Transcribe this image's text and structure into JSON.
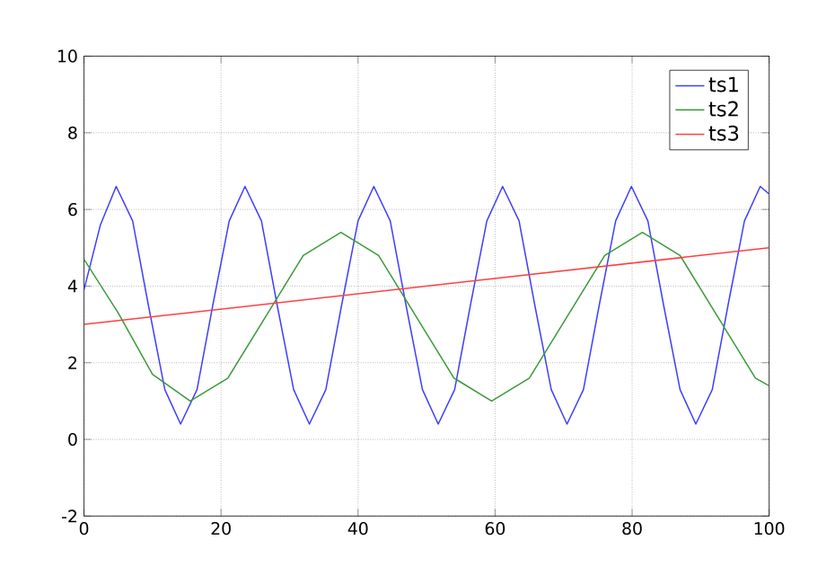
{
  "chart_data": {
    "type": "line",
    "xlim": [
      0,
      100
    ],
    "ylim": [
      -2,
      10
    ],
    "xticks": [
      0,
      20,
      40,
      60,
      80,
      100
    ],
    "yticks": [
      -2,
      0,
      2,
      4,
      6,
      8,
      10
    ],
    "grid": true,
    "legend": "top right",
    "marker": "none",
    "line_style": "solid",
    "series": [
      {
        "name": "ts1",
        "color": "#3f3fff",
        "x": [
          0,
          2.4,
          4.7,
          7.1,
          9.4,
          11.8,
          14.1,
          16.5,
          18.8,
          21.2,
          23.5,
          25.9,
          28.2,
          30.6,
          32.9,
          35.3,
          37.6,
          40,
          42.3,
          44.7,
          47,
          49.4,
          51.7,
          54.1,
          56.4,
          58.8,
          61.1,
          63.5,
          65.8,
          68.2,
          70.5,
          72.9,
          75.2,
          77.6,
          79.9,
          82.3,
          84.6,
          87,
          89.3,
          91.7,
          94,
          96.4,
          98.7,
          100
        ],
        "values": [
          3.9,
          5.6,
          6.6,
          5.7,
          3.5,
          1.3,
          0.4,
          1.3,
          3.5,
          5.7,
          6.6,
          5.7,
          3.5,
          1.3,
          0.4,
          1.3,
          3.5,
          5.7,
          6.6,
          5.7,
          3.5,
          1.3,
          0.4,
          1.3,
          3.5,
          5.7,
          6.6,
          5.7,
          3.5,
          1.3,
          0.4,
          1.3,
          3.5,
          5.7,
          6.6,
          5.7,
          3.5,
          1.3,
          0.4,
          1.3,
          3.5,
          5.7,
          6.6,
          6.4
        ]
      },
      {
        "name": "ts2",
        "color": "#3a9a3a",
        "x": [
          0,
          5,
          10,
          15.5,
          21,
          26.5,
          32,
          37.5,
          43,
          48.5,
          54,
          59.5,
          65,
          70.5,
          76,
          81.5,
          87,
          92.5,
          98,
          100
        ],
        "values": [
          4.7,
          3.3,
          1.7,
          1.0,
          1.6,
          3.2,
          4.8,
          5.4,
          4.8,
          3.2,
          1.6,
          1.0,
          1.6,
          3.2,
          4.8,
          5.4,
          4.8,
          3.2,
          1.6,
          1.4
        ]
      },
      {
        "name": "ts3",
        "color": "#ff4040",
        "x": [
          0,
          100
        ],
        "values": [
          3.0,
          5.0
        ]
      }
    ]
  }
}
